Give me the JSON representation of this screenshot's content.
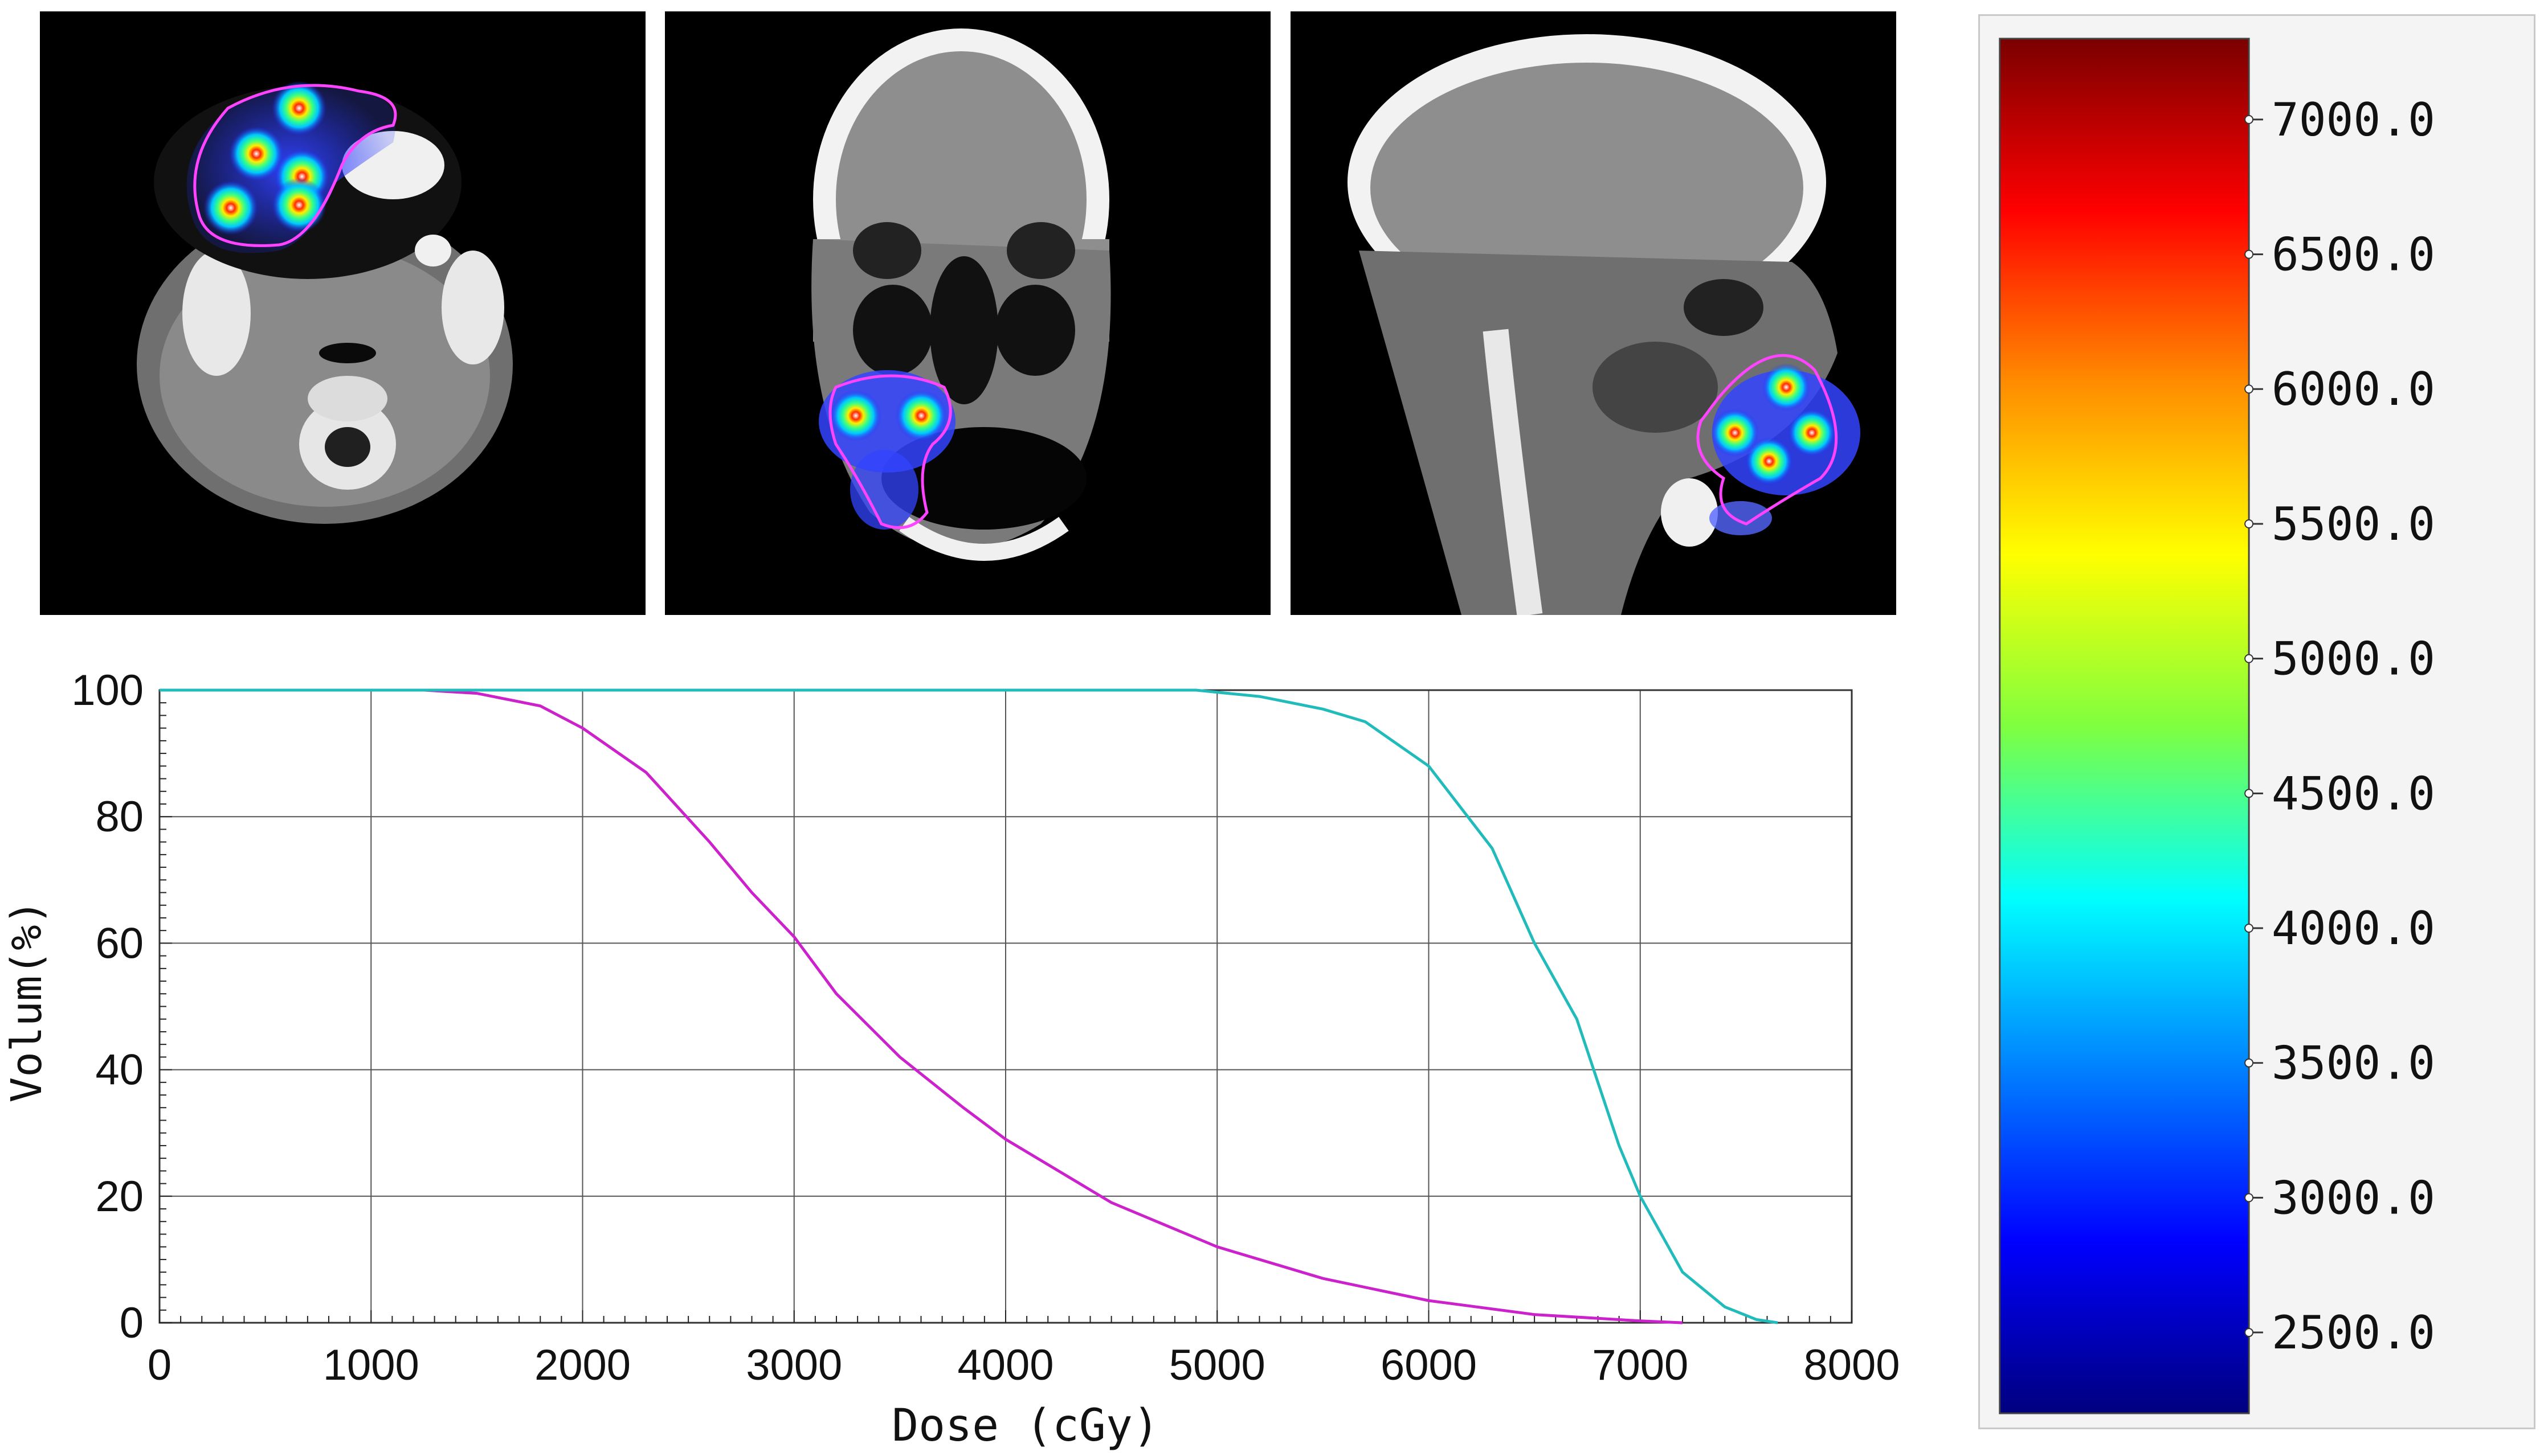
{
  "ct_images": [
    {
      "view": "axial"
    },
    {
      "view": "coronal"
    },
    {
      "view": "sagittal"
    }
  ],
  "colorbar": {
    "labels": [
      "7000.0",
      "6500.0",
      "6000.0",
      "5500.0",
      "5000.0",
      "4500.0",
      "4000.0",
      "3500.0",
      "3000.0",
      "2500.0"
    ],
    "values": [
      7000,
      6500,
      6000,
      5500,
      5000,
      4500,
      4000,
      3500,
      3000,
      2500
    ],
    "range": [
      2200,
      7300
    ],
    "colors": [
      "#7a0000",
      "#ff0000",
      "#ff8c00",
      "#ffff00",
      "#7fff3f",
      "#00ffff",
      "#0080ff",
      "#0000ff",
      "#00007f"
    ]
  },
  "chart_data": {
    "type": "line",
    "xlabel": "Dose (cGy)",
    "ylabel": "Volum(%)",
    "xlim": [
      0,
      8000
    ],
    "ylim": [
      0,
      100
    ],
    "xticks": [
      0,
      1000,
      2000,
      3000,
      4000,
      5000,
      6000,
      7000,
      8000
    ],
    "yticks": [
      0,
      20,
      40,
      60,
      80,
      100
    ],
    "grid": true,
    "series": [
      {
        "color": "#cc22cc",
        "x": [
          0,
          1250,
          1500,
          1800,
          2000,
          2300,
          2600,
          2800,
          3000,
          3200,
          3500,
          3800,
          4000,
          4500,
          5000,
          5500,
          6000,
          6500,
          7000,
          7200
        ],
        "y": [
          100,
          100,
          99.5,
          97.5,
          94,
          87,
          76,
          68,
          61,
          52,
          42,
          34,
          29,
          19,
          12,
          7,
          3.5,
          1.3,
          0.3,
          0
        ]
      },
      {
        "color": "#22bbbb",
        "x": [
          0,
          4900,
          5200,
          5500,
          5700,
          6000,
          6300,
          6500,
          6700,
          6900,
          7000,
          7200,
          7400,
          7550,
          7650
        ],
        "y": [
          100,
          100,
          99,
          97,
          95,
          88,
          75,
          60,
          48,
          28,
          20,
          8,
          2.5,
          0.5,
          0
        ]
      }
    ]
  }
}
